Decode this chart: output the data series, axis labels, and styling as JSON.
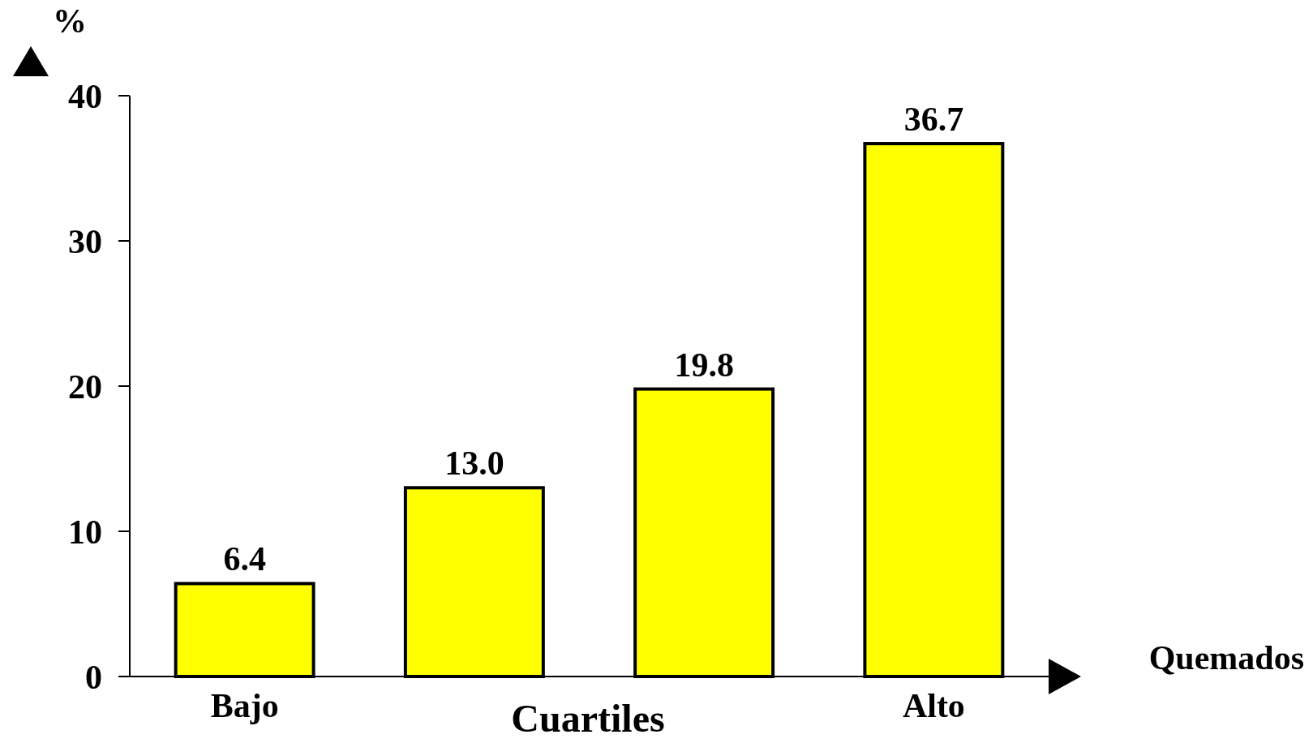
{
  "chart_data": {
    "type": "bar",
    "xlabel": "Cuartiles",
    "ylabel": "%",
    "categories": [
      "Bajo",
      null,
      null,
      "Alto"
    ],
    "values": [
      6.4,
      13.0,
      19.8,
      36.7
    ],
    "value_labels": [
      "6.4",
      "13.0",
      "19.8",
      "36.7"
    ],
    "color": "#ffff00",
    "ylim": [
      0,
      40
    ],
    "yticks": [
      0,
      10,
      20,
      30,
      40
    ],
    "grid": false,
    "annotations": [
      "Quemados"
    ]
  }
}
